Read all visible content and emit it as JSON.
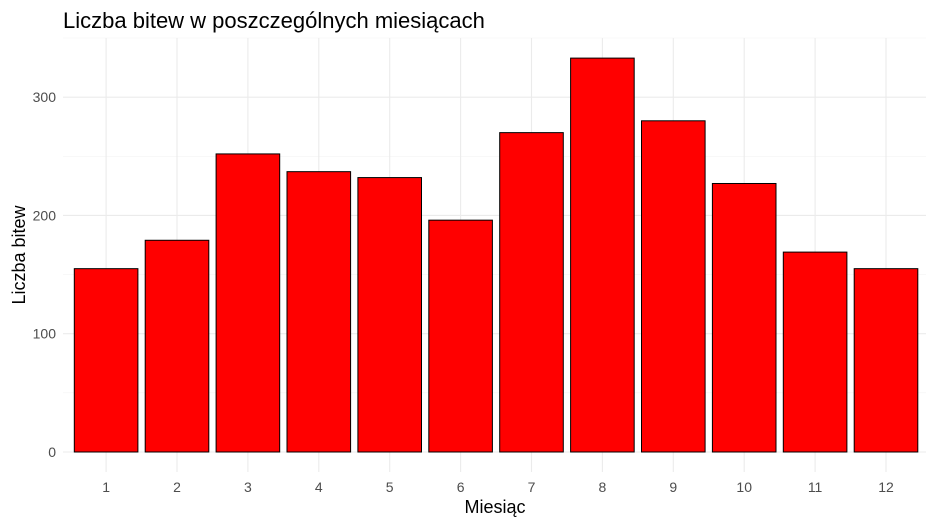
{
  "chart_data": {
    "type": "bar",
    "title": "Liczba bitew w poszczególnych miesiącach",
    "xlabel": "Miesiąc",
    "ylabel": "Liczba bitew",
    "categories": [
      "1",
      "2",
      "3",
      "4",
      "5",
      "6",
      "7",
      "8",
      "9",
      "10",
      "11",
      "12"
    ],
    "values": [
      155,
      179,
      252,
      237,
      232,
      196,
      270,
      333,
      280,
      227,
      169,
      155
    ],
    "ylim": [
      0,
      350
    ],
    "yticks": [
      0,
      100,
      200,
      300
    ],
    "grid": true,
    "colors": {
      "bar_fill": "#ff0000",
      "bar_outline": "#000000"
    }
  }
}
